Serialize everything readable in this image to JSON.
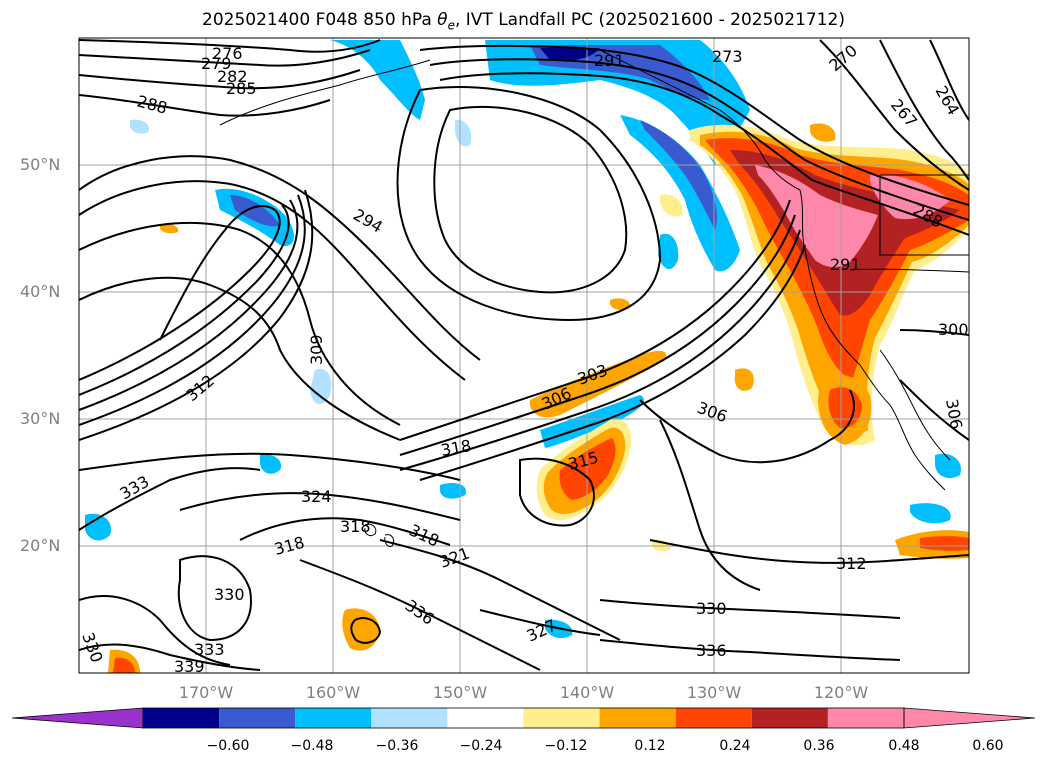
{
  "title": {
    "prefix": "2025021400 F048 850 hPa ",
    "theta_symbol": "θ",
    "theta_sub": "e",
    "suffix": ", IVT Landfall PC (2025021600 - 2025021712)"
  },
  "axes": {
    "lat_labels": [
      "50°N",
      "40°N",
      "30°N",
      "20°N"
    ],
    "lon_labels": [
      "170°W",
      "160°W",
      "150°W",
      "140°W",
      "130°W",
      "120°W"
    ]
  },
  "colorbar": {
    "ticks": [
      "−0.60",
      "−0.48",
      "−0.36",
      "−0.24",
      "−0.12",
      "0.12",
      "0.24",
      "0.36",
      "0.48",
      "0.60"
    ],
    "colors": {
      "under": "#9932CC",
      "bins": [
        "#00008B",
        "#3A5BD0",
        "#00BFFF",
        "#B0E2FF",
        "#FFFFFF",
        "#FFEE8C",
        "#FFA500",
        "#FF4500",
        "#B22222",
        "#FF88AA"
      ],
      "over": "#FF88AA"
    }
  },
  "contour_labels": [
    "276",
    "279",
    "282",
    "285",
    "288",
    "264",
    "267",
    "270",
    "273",
    "291",
    "294",
    "288",
    "309",
    "312",
    "303",
    "300",
    "306",
    "306",
    "306",
    "315",
    "318",
    "324",
    "318",
    "318",
    "321",
    "318",
    "333",
    "330",
    "336",
    "327",
    "330",
    "336",
    "312",
    "333",
    "339",
    "330",
    "291"
  ]
}
